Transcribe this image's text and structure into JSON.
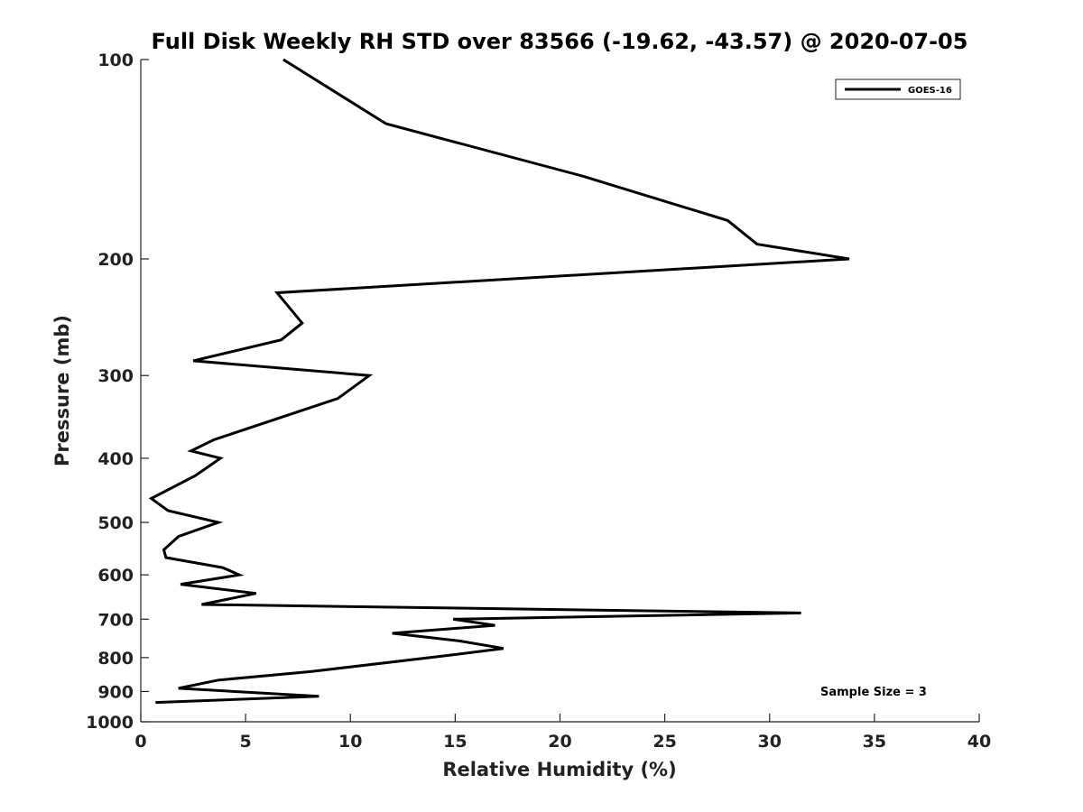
{
  "chart_data": {
    "type": "line",
    "title": "Full Disk Weekly RH STD over 83566 (-19.62, -43.57) @ 2020-07-05",
    "xlabel": "Relative Humidity (%)",
    "ylabel": "Pressure (mb)",
    "xlim": [
      0,
      40
    ],
    "ylim": [
      100,
      1000
    ],
    "yscale": "log",
    "yreversed": true,
    "x_ticks": [
      0,
      5,
      10,
      15,
      20,
      25,
      30,
      35,
      40
    ],
    "y_ticks": [
      100,
      200,
      300,
      400,
      500,
      600,
      700,
      800,
      900,
      1000
    ],
    "grid": false,
    "legend_position": "top-right",
    "annotation": "Sample Size = 3",
    "series": [
      {
        "name": "GOES-16",
        "color": "#000000",
        "points": [
          [
            6.8,
            100
          ],
          [
            11.7,
            125
          ],
          [
            21.1,
            150
          ],
          [
            28.0,
            175
          ],
          [
            29.4,
            190
          ],
          [
            33.8,
            200
          ],
          [
            6.5,
            225
          ],
          [
            7.7,
            250
          ],
          [
            6.7,
            265
          ],
          [
            2.5,
            285
          ],
          [
            10.9,
            300
          ],
          [
            9.4,
            325
          ],
          [
            3.5,
            375
          ],
          [
            2.4,
            390
          ],
          [
            3.8,
            400
          ],
          [
            2.6,
            425
          ],
          [
            0.5,
            460
          ],
          [
            1.3,
            480
          ],
          [
            3.7,
            500
          ],
          [
            1.8,
            525
          ],
          [
            1.1,
            550
          ],
          [
            1.2,
            565
          ],
          [
            3.9,
            585
          ],
          [
            4.7,
            600
          ],
          [
            1.9,
            620
          ],
          [
            5.5,
            640
          ],
          [
            2.9,
            665
          ],
          [
            31.5,
            685
          ],
          [
            14.9,
            700
          ],
          [
            16.9,
            715
          ],
          [
            12.0,
            735
          ],
          [
            15.2,
            755
          ],
          [
            17.3,
            775
          ],
          [
            14.5,
            795
          ],
          [
            8.1,
            840
          ],
          [
            3.7,
            865
          ],
          [
            1.8,
            890
          ],
          [
            8.5,
            915
          ],
          [
            0.7,
            935
          ]
        ]
      }
    ]
  }
}
